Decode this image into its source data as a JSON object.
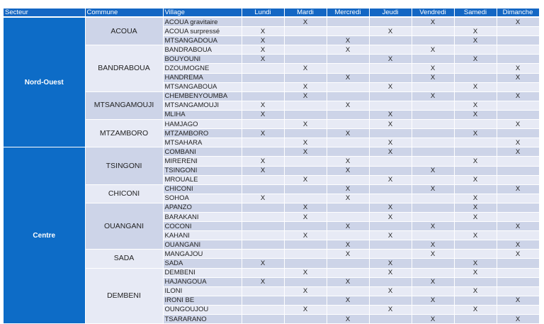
{
  "headers": [
    "Secteur",
    "Commune",
    "Village",
    "Lundi",
    "Mardi",
    "Mercredi",
    "Jeudi",
    "Vendredi",
    "Samedi",
    "Dimanche"
  ],
  "mark": "X",
  "sectors": [
    {
      "name": "Nord-Ouest",
      "communes": [
        {
          "name": "ACOUA",
          "villages": [
            {
              "name": "ACOUA gravitaire",
              "days": [
                0,
                1,
                0,
                0,
                1,
                0,
                1
              ]
            },
            {
              "name": "ACOUA surpressé",
              "days": [
                1,
                0,
                0,
                1,
                0,
                1,
                0
              ]
            },
            {
              "name": "MTSANGADOUA",
              "days": [
                1,
                0,
                1,
                0,
                0,
                1,
                0
              ]
            }
          ]
        },
        {
          "name": "BANDRABOUA",
          "villages": [
            {
              "name": "BANDRABOUA",
              "days": [
                1,
                0,
                1,
                0,
                1,
                0,
                0
              ]
            },
            {
              "name": "BOUYOUNI",
              "days": [
                1,
                0,
                0,
                1,
                0,
                1,
                0
              ]
            },
            {
              "name": "DZOUMOGNE",
              "days": [
                0,
                1,
                0,
                0,
                1,
                0,
                1
              ]
            },
            {
              "name": "HANDREMA",
              "days": [
                0,
                0,
                1,
                0,
                1,
                0,
                1
              ]
            },
            {
              "name": "MTSANGABOUA",
              "days": [
                0,
                1,
                0,
                1,
                0,
                1,
                0
              ]
            }
          ]
        },
        {
          "name": "MTSANGAMOUJI",
          "villages": [
            {
              "name": "CHEMBENYOUMBA",
              "days": [
                0,
                1,
                0,
                0,
                1,
                0,
                1
              ]
            },
            {
              "name": "MTSANGAMOUJI",
              "days": [
                1,
                0,
                1,
                0,
                0,
                1,
                0
              ]
            },
            {
              "name": "MLIHA",
              "days": [
                1,
                0,
                0,
                1,
                0,
                1,
                0
              ]
            }
          ]
        },
        {
          "name": "MTZAMBORO",
          "villages": [
            {
              "name": "HAMJAGO",
              "days": [
                0,
                1,
                0,
                1,
                0,
                0,
                1
              ]
            },
            {
              "name": "MTZAMBORO",
              "days": [
                1,
                0,
                1,
                0,
                0,
                1,
                0
              ]
            },
            {
              "name": "MTSAHARA",
              "days": [
                0,
                1,
                0,
                1,
                0,
                0,
                1
              ]
            }
          ]
        }
      ]
    },
    {
      "name": "Centre",
      "communes": [
        {
          "name": "TSINGONI",
          "villages": [
            {
              "name": "COMBANI",
              "days": [
                0,
                1,
                0,
                1,
                0,
                0,
                1
              ]
            },
            {
              "name": "MIRERENI",
              "days": [
                1,
                0,
                1,
                0,
                0,
                1,
                0
              ]
            },
            {
              "name": "TSINGONI",
              "days": [
                1,
                0,
                1,
                0,
                1,
                0,
                0
              ]
            },
            {
              "name": "MROUALE",
              "days": [
                0,
                1,
                0,
                1,
                0,
                1,
                0
              ]
            }
          ]
        },
        {
          "name": "CHICONI",
          "villages": [
            {
              "name": "CHICONI",
              "days": [
                0,
                0,
                1,
                0,
                1,
                0,
                1
              ]
            },
            {
              "name": "SOHOA",
              "days": [
                1,
                0,
                1,
                0,
                0,
                1,
                0
              ]
            }
          ]
        },
        {
          "name": "OUANGANI",
          "villages": [
            {
              "name": "APANZO",
              "days": [
                0,
                1,
                0,
                1,
                0,
                1,
                0
              ]
            },
            {
              "name": "BARAKANI",
              "days": [
                0,
                1,
                0,
                1,
                0,
                1,
                0
              ]
            },
            {
              "name": "COCONI",
              "days": [
                0,
                0,
                1,
                0,
                1,
                0,
                1
              ]
            },
            {
              "name": "KAHANI",
              "days": [
                0,
                1,
                0,
                1,
                0,
                1,
                0
              ]
            },
            {
              "name": "OUANGANI",
              "days": [
                0,
                0,
                1,
                0,
                1,
                0,
                1
              ]
            }
          ]
        },
        {
          "name": "SADA",
          "villages": [
            {
              "name": "MANGAJOU",
              "days": [
                0,
                0,
                1,
                0,
                1,
                0,
                1
              ]
            },
            {
              "name": "SADA",
              "days": [
                1,
                0,
                0,
                1,
                0,
                1,
                0
              ]
            }
          ]
        },
        {
          "name": "DEMBENI",
          "villages": [
            {
              "name": "DEMBENI",
              "days": [
                0,
                1,
                0,
                1,
                0,
                1,
                0
              ]
            },
            {
              "name": "HAJANGOUA",
              "days": [
                1,
                0,
                1,
                0,
                1,
                0,
                0
              ]
            },
            {
              "name": "ILONI",
              "days": [
                0,
                1,
                0,
                1,
                0,
                1,
                0
              ]
            },
            {
              "name": "IRONI BE",
              "days": [
                0,
                0,
                1,
                0,
                1,
                0,
                1
              ]
            },
            {
              "name": "OUNGOUJOU",
              "days": [
                0,
                1,
                0,
                1,
                0,
                1,
                0
              ]
            },
            {
              "name": "TSARARANO",
              "days": [
                0,
                0,
                1,
                0,
                1,
                0,
                1
              ]
            }
          ]
        }
      ]
    }
  ]
}
